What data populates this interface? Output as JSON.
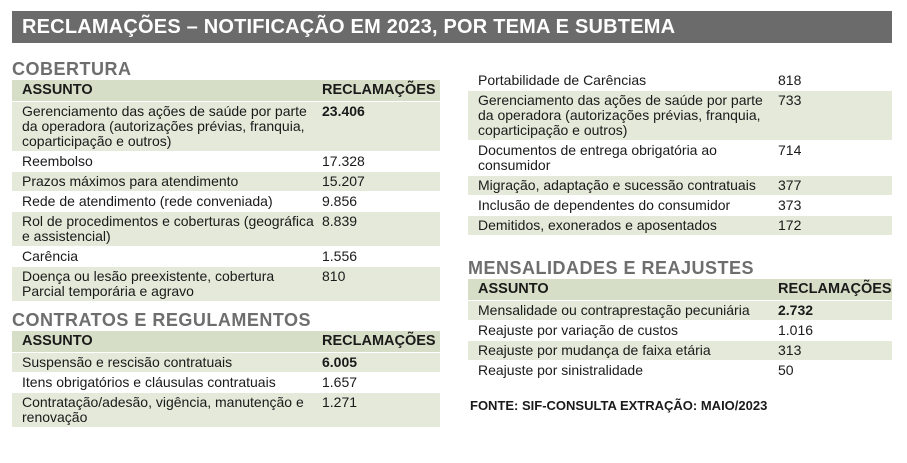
{
  "title": "RECLAMAÇÕES – NOTIFICAÇÃO EM 2023, POR TEMA E SUBTEMA",
  "cobertura": {
    "heading": "COBERTURA",
    "col_subject": "ASSUNTO",
    "col_count": "RECLAMAÇÕES",
    "rows": [
      {
        "subject": "Gerenciamento das ações de saúde por parte da operadora (autorizações prévias, franquia, coparticipação e outros)",
        "count": "23.406"
      },
      {
        "subject": "Reembolso",
        "count": "17.328"
      },
      {
        "subject": "Prazos máximos para atendimento",
        "count": "15.207"
      },
      {
        "subject": "Rede de atendimento (rede conveniada)",
        "count": "9.856"
      },
      {
        "subject": "Rol de procedimentos e coberturas (geográfica e assistencial)",
        "count": "8.839"
      },
      {
        "subject": "Carência",
        "count": "1.556"
      },
      {
        "subject": "Doença ou lesão preexistente, cobertura Parcial temporária e agravo",
        "count": "810"
      }
    ]
  },
  "contratos": {
    "heading": "CONTRATOS E REGULAMENTOS",
    "col_subject": "ASSUNTO",
    "col_count": "RECLAMAÇÕES",
    "rows": [
      {
        "subject": "Suspensão e rescisão contratuais",
        "count": "6.005"
      },
      {
        "subject": "Itens obrigatórios e cláusulas contratuais",
        "count": "1.657"
      },
      {
        "subject": "Contratação/adesão, vigência, manutenção e renovação",
        "count": "1.271"
      }
    ]
  },
  "contratos_cont": {
    "rows": [
      {
        "subject": "Portabilidade de Carências",
        "count": "818"
      },
      {
        "subject": "Gerenciamento das ações de saúde por parte da operadora (autorizações prévias, franquia, coparticipação e outros)",
        "count": "733"
      },
      {
        "subject": "Documentos de entrega obrigatória ao consumidor",
        "count": "714"
      },
      {
        "subject": "Migração, adaptação e sucessão contratuais",
        "count": "377"
      },
      {
        "subject": "Inclusão de dependentes do consumidor",
        "count": "373"
      },
      {
        "subject": "Demitidos, exonerados e aposentados",
        "count": "172"
      }
    ]
  },
  "mensalidades": {
    "heading": "MENSALIDADES E REAJUSTES",
    "col_subject": "ASSUNTO",
    "col_count": "RECLAMAÇÕES",
    "rows": [
      {
        "subject": "Mensalidade ou contraprestação pecuniária",
        "count": "2.732"
      },
      {
        "subject": "Reajuste por variação de custos",
        "count": "1.016"
      },
      {
        "subject": "Reajuste por mudança de faixa etária",
        "count": "313"
      },
      {
        "subject": "Reajuste por sinistralidade",
        "count": "50"
      }
    ]
  },
  "source": "FONTE: SIF-CONSULTA EXTRAÇÃO: MAIO/2023"
}
